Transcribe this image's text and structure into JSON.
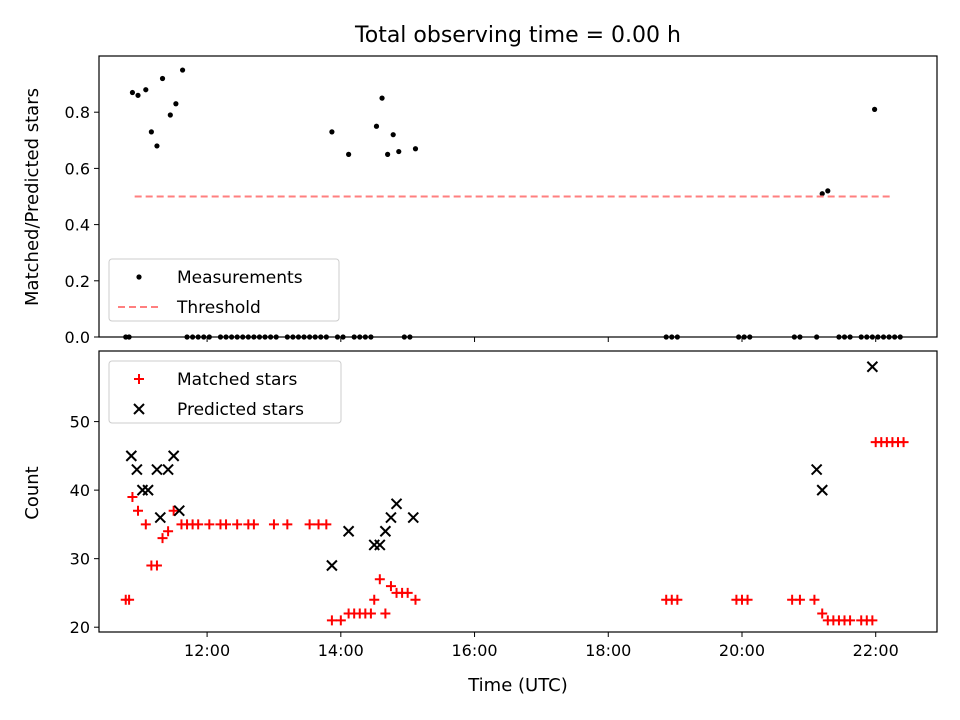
{
  "title": "Total observing time = 0.00 h",
  "xlabel": "Time (UTC)",
  "x_ticks": [
    "12:00",
    "14:00",
    "16:00",
    "18:00",
    "20:00",
    "22:00"
  ],
  "colors": {
    "matched": "#ff0000",
    "predicted": "#000000",
    "threshold": "#ff7f7f",
    "measurements": "#000000"
  },
  "chart_data": [
    {
      "type": "scatter",
      "panel": "top",
      "ylabel": "Matched/Predicted stars",
      "xlim": [
        "10:23",
        "22:55"
      ],
      "ylim": [
        0,
        1.0
      ],
      "y_ticks": [
        "0.0",
        "0.2",
        "0.4",
        "0.6",
        "0.8"
      ],
      "legend_position": "lower-left",
      "series": [
        {
          "name": "Measurements",
          "marker": "dot",
          "points": [
            [
              "10:47",
              0
            ],
            [
              "10:50",
              0
            ],
            [
              "10:53",
              0.87
            ],
            [
              "10:58",
              0.86
            ],
            [
              "11:05",
              0.88
            ],
            [
              "11:10",
              0.73
            ],
            [
              "11:15",
              0.68
            ],
            [
              "11:20",
              0.92
            ],
            [
              "11:27",
              0.79
            ],
            [
              "11:32",
              0.83
            ],
            [
              "11:38",
              0.95
            ],
            [
              "11:42",
              0
            ],
            [
              "11:47",
              0
            ],
            [
              "11:52",
              0
            ],
            [
              "11:57",
              0
            ],
            [
              "12:02",
              0
            ],
            [
              "12:12",
              0
            ],
            [
              "12:17",
              0
            ],
            [
              "12:22",
              0
            ],
            [
              "12:27",
              0
            ],
            [
              "12:32",
              0
            ],
            [
              "12:37",
              0
            ],
            [
              "12:42",
              0
            ],
            [
              "12:47",
              0
            ],
            [
              "12:52",
              0
            ],
            [
              "12:57",
              0
            ],
            [
              "13:02",
              0
            ],
            [
              "13:12",
              0
            ],
            [
              "13:17",
              0
            ],
            [
              "13:22",
              0
            ],
            [
              "13:27",
              0
            ],
            [
              "13:32",
              0
            ],
            [
              "13:37",
              0
            ],
            [
              "13:42",
              0
            ],
            [
              "13:47",
              0
            ],
            [
              "13:52",
              0.73
            ],
            [
              "13:57",
              0
            ],
            [
              "14:02",
              0
            ],
            [
              "14:07",
              0.65
            ],
            [
              "14:12",
              0
            ],
            [
              "14:17",
              0
            ],
            [
              "14:22",
              0
            ],
            [
              "14:27",
              0
            ],
            [
              "14:32",
              0.75
            ],
            [
              "14:37",
              0.85
            ],
            [
              "14:42",
              0.65
            ],
            [
              "14:47",
              0.72
            ],
            [
              "14:52",
              0.66
            ],
            [
              "14:57",
              0
            ],
            [
              "15:02",
              0
            ],
            [
              "15:07",
              0.67
            ],
            [
              "18:52",
              0
            ],
            [
              "18:57",
              0
            ],
            [
              "19:02",
              0
            ],
            [
              "19:57",
              0
            ],
            [
              "20:02",
              0
            ],
            [
              "20:07",
              0
            ],
            [
              "20:47",
              0
            ],
            [
              "20:52",
              0
            ],
            [
              "21:07",
              0
            ],
            [
              "21:12",
              0.51
            ],
            [
              "21:17",
              0.52
            ],
            [
              "21:27",
              0
            ],
            [
              "21:32",
              0
            ],
            [
              "21:37",
              0
            ],
            [
              "21:47",
              0
            ],
            [
              "21:52",
              0
            ],
            [
              "21:57",
              0
            ],
            [
              "21:59",
              0.81
            ],
            [
              "22:02",
              0
            ],
            [
              "22:07",
              0
            ],
            [
              "22:12",
              0
            ],
            [
              "22:17",
              0
            ],
            [
              "22:22",
              0
            ]
          ]
        },
        {
          "name": "Threshold",
          "line_style": "dashed",
          "x": [
            "10:55",
            "22:15"
          ],
          "y": [
            0.5,
            0.5
          ]
        }
      ]
    },
    {
      "type": "scatter",
      "panel": "bottom",
      "ylabel": "Count",
      "xlim": [
        "10:23",
        "22:55"
      ],
      "ylim": [
        19.3,
        60.3
      ],
      "y_ticks": [
        "20",
        "30",
        "40",
        "50"
      ],
      "legend_position": "upper-left",
      "series": [
        {
          "name": "Matched stars",
          "marker": "plus",
          "points": [
            [
              "10:47",
              24
            ],
            [
              "10:50",
              24
            ],
            [
              "10:53",
              39
            ],
            [
              "10:58",
              37
            ],
            [
              "11:05",
              35
            ],
            [
              "11:10",
              29
            ],
            [
              "11:15",
              29
            ],
            [
              "11:20",
              33
            ],
            [
              "11:25",
              34
            ],
            [
              "11:30",
              37
            ],
            [
              "11:37",
              35
            ],
            [
              "11:42",
              35
            ],
            [
              "11:47",
              35
            ],
            [
              "11:52",
              35
            ],
            [
              "12:02",
              35
            ],
            [
              "12:12",
              35
            ],
            [
              "12:17",
              35
            ],
            [
              "12:27",
              35
            ],
            [
              "12:37",
              35
            ],
            [
              "12:42",
              35
            ],
            [
              "13:00",
              35
            ],
            [
              "13:12",
              35
            ],
            [
              "13:32",
              35
            ],
            [
              "13:40",
              35
            ],
            [
              "13:47",
              35
            ],
            [
              "13:52",
              21
            ],
            [
              "14:00",
              21
            ],
            [
              "14:07",
              22
            ],
            [
              "14:12",
              22
            ],
            [
              "14:17",
              22
            ],
            [
              "14:22",
              22
            ],
            [
              "14:27",
              22
            ],
            [
              "14:30",
              24
            ],
            [
              "14:35",
              27
            ],
            [
              "14:40",
              22
            ],
            [
              "14:45",
              26
            ],
            [
              "14:50",
              25
            ],
            [
              "14:55",
              25
            ],
            [
              "15:00",
              25
            ],
            [
              "15:07",
              24
            ],
            [
              "18:52",
              24
            ],
            [
              "18:57",
              24
            ],
            [
              "19:02",
              24
            ],
            [
              "19:55",
              24
            ],
            [
              "20:00",
              24
            ],
            [
              "20:05",
              24
            ],
            [
              "20:45",
              24
            ],
            [
              "20:52",
              24
            ],
            [
              "21:05",
              24
            ],
            [
              "21:12",
              22
            ],
            [
              "21:17",
              21
            ],
            [
              "21:22",
              21
            ],
            [
              "21:27",
              21
            ],
            [
              "21:32",
              21
            ],
            [
              "21:37",
              21
            ],
            [
              "21:47",
              21
            ],
            [
              "21:52",
              21
            ],
            [
              "21:57",
              21
            ],
            [
              "22:00",
              47
            ],
            [
              "22:05",
              47
            ],
            [
              "22:10",
              47
            ],
            [
              "22:15",
              47
            ],
            [
              "22:20",
              47
            ],
            [
              "22:25",
              47
            ]
          ]
        },
        {
          "name": "Predicted stars",
          "marker": "x",
          "points": [
            [
              "10:52",
              45
            ],
            [
              "10:57",
              43
            ],
            [
              "11:02",
              40
            ],
            [
              "11:07",
              40
            ],
            [
              "11:15",
              43
            ],
            [
              "11:18",
              36
            ],
            [
              "11:25",
              43
            ],
            [
              "11:30",
              45
            ],
            [
              "11:35",
              37
            ],
            [
              "13:52",
              29
            ],
            [
              "14:07",
              34
            ],
            [
              "14:30",
              32
            ],
            [
              "14:35",
              32
            ],
            [
              "14:40",
              34
            ],
            [
              "14:45",
              36
            ],
            [
              "14:50",
              38
            ],
            [
              "15:05",
              36
            ],
            [
              "21:07",
              43
            ],
            [
              "21:12",
              40
            ],
            [
              "21:57",
              58
            ]
          ]
        }
      ]
    }
  ]
}
